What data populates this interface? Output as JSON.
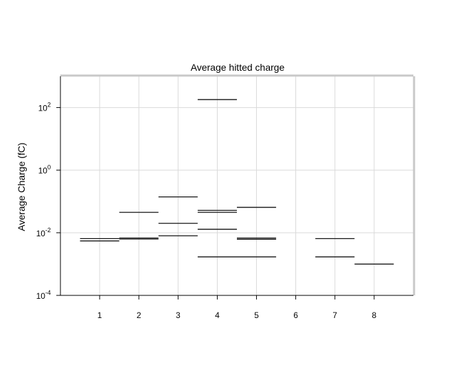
{
  "chart_data": {
    "type": "step",
    "title": "Average hitted charge",
    "xlabel": "",
    "ylabel": "Average Charge (fC)",
    "xlim": [
      0,
      9
    ],
    "ylim": [
      0.0001,
      1000
    ],
    "y_scale": "log",
    "grid": true,
    "x_ticks": [
      "1",
      "2",
      "3",
      "4",
      "5",
      "6",
      "7",
      "8"
    ],
    "y_ticks": [
      {
        "base": "10",
        "exp": "2",
        "value": 100
      },
      {
        "base": "10",
        "exp": "0",
        "value": 1
      },
      {
        "base": "10",
        "exp": "-2",
        "value": 0.01
      },
      {
        "base": "10",
        "exp": "-4",
        "value": 0.0001
      }
    ],
    "segments": [
      {
        "x0": 0.5,
        "x1": 1.5,
        "y": 0.0065
      },
      {
        "x0": 0.5,
        "x1": 1.5,
        "y": 0.0055
      },
      {
        "x0": 1.5,
        "x1": 2.5,
        "y": 0.045
      },
      {
        "x0": 1.5,
        "x1": 2.5,
        "y": 0.0068
      },
      {
        "x0": 1.5,
        "x1": 2.5,
        "y": 0.0063
      },
      {
        "x0": 2.5,
        "x1": 3.5,
        "y": 0.14
      },
      {
        "x0": 2.5,
        "x1": 3.5,
        "y": 0.02
      },
      {
        "x0": 2.5,
        "x1": 3.5,
        "y": 0.008
      },
      {
        "x0": 3.5,
        "x1": 4.5,
        "y": 180
      },
      {
        "x0": 3.5,
        "x1": 4.5,
        "y": 0.052
      },
      {
        "x0": 3.5,
        "x1": 4.5,
        "y": 0.045
      },
      {
        "x0": 3.5,
        "x1": 4.5,
        "y": 0.013
      },
      {
        "x0": 3.5,
        "x1": 5.5,
        "y": 0.0017
      },
      {
        "x0": 4.5,
        "x1": 5.5,
        "y": 0.065
      },
      {
        "x0": 4.5,
        "x1": 5.5,
        "y": 0.0068
      },
      {
        "x0": 4.5,
        "x1": 5.5,
        "y": 0.0062
      },
      {
        "x0": 6.5,
        "x1": 7.5,
        "y": 0.0065
      },
      {
        "x0": 6.5,
        "x1": 7.5,
        "y": 0.0017
      },
      {
        "x0": 7.5,
        "x1": 8.5,
        "y": 0.001
      }
    ]
  }
}
